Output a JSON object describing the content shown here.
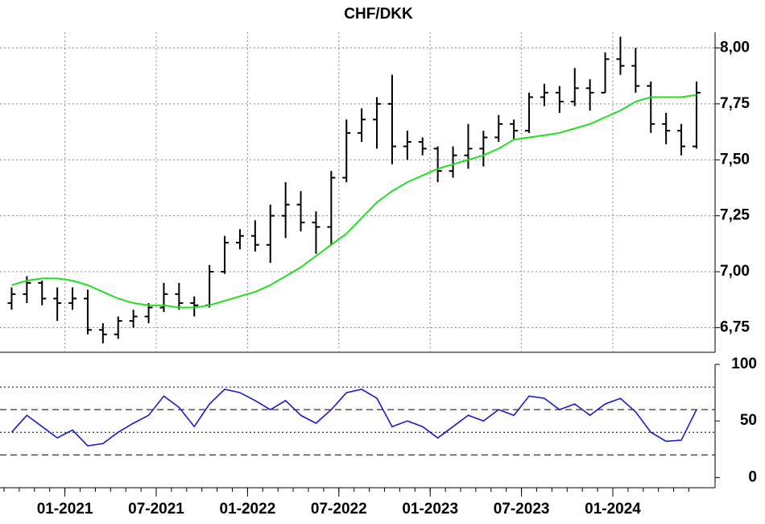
{
  "chart_data": [
    {
      "type": "ohlc",
      "title": "CHF/DKK",
      "categories": [
        "09-2020",
        "10-2020",
        "11-2020",
        "12-2020",
        "01-2021",
        "02-2021",
        "03-2021",
        "04-2021",
        "05-2021",
        "06-2021",
        "07-2021",
        "08-2021",
        "09-2021",
        "10-2021",
        "11-2021",
        "12-2021",
        "01-2022",
        "02-2022",
        "03-2022",
        "04-2022",
        "05-2022",
        "06-2022",
        "07-2022",
        "08-2022",
        "09-2022",
        "10-2022",
        "11-2022",
        "12-2022",
        "01-2023",
        "02-2023",
        "03-2023",
        "04-2023",
        "05-2023",
        "06-2023",
        "07-2023",
        "08-2023",
        "09-2023",
        "10-2023",
        "11-2023",
        "12-2023",
        "01-2024",
        "02-2024",
        "03-2024",
        "04-2024",
        "05-2024",
        "06-2024"
      ],
      "open": [
        6.86,
        6.9,
        6.95,
        6.88,
        6.86,
        6.88,
        6.74,
        6.72,
        6.78,
        6.8,
        6.84,
        6.9,
        6.86,
        6.85,
        7.0,
        7.13,
        7.16,
        7.12,
        7.25,
        7.3,
        7.22,
        7.2,
        7.42,
        7.62,
        7.68,
        7.75,
        7.56,
        7.58,
        7.55,
        7.45,
        7.52,
        7.55,
        7.6,
        7.66,
        7.63,
        7.78,
        7.8,
        7.76,
        7.82,
        7.8,
        7.95,
        7.92,
        7.83,
        7.66,
        7.63,
        7.56
      ],
      "high": [
        6.93,
        6.98,
        6.96,
        6.93,
        6.93,
        6.92,
        6.77,
        6.8,
        6.83,
        6.86,
        6.95,
        6.95,
        6.89,
        7.03,
        7.16,
        7.19,
        7.23,
        7.3,
        7.4,
        7.36,
        7.27,
        7.45,
        7.68,
        7.73,
        7.78,
        7.88,
        7.63,
        7.6,
        7.56,
        7.56,
        7.66,
        7.63,
        7.7,
        7.68,
        7.8,
        7.84,
        7.83,
        7.91,
        7.86,
        7.98,
        8.05,
        8.0,
        7.85,
        7.71,
        7.66,
        7.85
      ],
      "low": [
        6.83,
        6.86,
        6.85,
        6.78,
        6.83,
        6.72,
        6.68,
        6.7,
        6.75,
        6.77,
        6.82,
        6.83,
        6.8,
        6.84,
        6.99,
        7.1,
        7.09,
        7.04,
        7.15,
        7.18,
        7.08,
        7.12,
        7.4,
        7.58,
        7.55,
        7.48,
        7.5,
        7.52,
        7.4,
        7.42,
        7.46,
        7.47,
        7.58,
        7.59,
        7.62,
        7.74,
        7.71,
        7.74,
        7.72,
        7.8,
        7.88,
        7.8,
        7.62,
        7.57,
        7.52,
        7.55
      ],
      "close": [
        6.9,
        6.95,
        6.88,
        6.86,
        6.88,
        6.74,
        6.72,
        6.78,
        6.8,
        6.84,
        6.9,
        6.86,
        6.85,
        7.0,
        7.13,
        7.16,
        7.12,
        7.25,
        7.3,
        7.22,
        7.2,
        7.42,
        7.62,
        7.68,
        7.75,
        7.56,
        7.58,
        7.55,
        7.45,
        7.52,
        7.55,
        7.6,
        7.66,
        7.63,
        7.78,
        7.8,
        7.76,
        7.82,
        7.8,
        7.95,
        7.92,
        7.83,
        7.66,
        7.63,
        7.56,
        7.8
      ],
      "color": "#000000",
      "moving_average": {
        "color": "#22dd22",
        "values": [
          6.94,
          6.96,
          6.97,
          6.97,
          6.96,
          6.94,
          6.91,
          6.88,
          6.86,
          6.85,
          6.85,
          6.84,
          6.84,
          6.85,
          6.87,
          6.89,
          6.91,
          6.94,
          6.98,
          7.02,
          7.07,
          7.12,
          7.17,
          7.24,
          7.31,
          7.36,
          7.4,
          7.43,
          7.46,
          7.48,
          7.5,
          7.52,
          7.55,
          7.59,
          7.6,
          7.61,
          7.62,
          7.64,
          7.66,
          7.69,
          7.72,
          7.76,
          7.78,
          7.78,
          7.78,
          7.79
        ]
      },
      "ylim": [
        6.64,
        8.07
      ],
      "yticks": [
        {
          "value": 6.75,
          "label": "6,75"
        },
        {
          "value": 7,
          "label": "7,00"
        },
        {
          "value": 7.25,
          "label": "7,25"
        },
        {
          "value": 7.5,
          "label": "7,50"
        },
        {
          "value": 7.75,
          "label": "7,75"
        },
        {
          "value": 8,
          "label": "8,00"
        }
      ],
      "xticks": [
        "01-2021",
        "07-2021",
        "01-2022",
        "07-2022",
        "01-2023",
        "07-2023",
        "01-2024"
      ],
      "grid": true
    },
    {
      "type": "line",
      "color": "#1a1acc",
      "values": [
        40,
        55,
        45,
        35,
        42,
        28,
        30,
        40,
        48,
        55,
        72,
        62,
        45,
        65,
        78,
        75,
        68,
        60,
        68,
        55,
        48,
        60,
        75,
        78,
        70,
        45,
        50,
        45,
        35,
        45,
        55,
        50,
        60,
        55,
        72,
        70,
        60,
        65,
        55,
        65,
        70,
        58,
        40,
        32,
        33,
        60
      ],
      "ylim": [
        -9,
        100
      ],
      "yticks": [
        0,
        50,
        100
      ],
      "reference_lines": [
        80,
        60,
        40,
        20
      ]
    }
  ]
}
